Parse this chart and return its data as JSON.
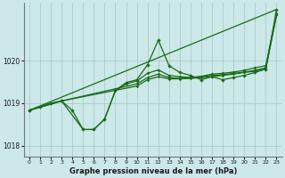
{
  "title": "Graphe pression niveau de la mer (hPa)",
  "bg_color": "#cce8e8",
  "grid_color": "#aacccc",
  "line_color": "#1a6b1a",
  "xlim": [
    -0.5,
    23.5
  ],
  "ylim": [
    1017.75,
    1021.35
  ],
  "yticks": [
    1018,
    1019,
    1020
  ],
  "xticks": [
    0,
    1,
    2,
    3,
    4,
    5,
    6,
    7,
    8,
    9,
    10,
    11,
    12,
    13,
    14,
    15,
    16,
    17,
    18,
    19,
    20,
    21,
    22,
    23
  ],
  "series1_x": [
    0,
    1,
    2,
    3,
    4,
    5,
    6,
    7,
    8,
    9,
    10,
    11,
    12,
    13,
    14,
    15,
    16,
    17,
    18,
    19,
    20,
    21,
    22,
    23
  ],
  "series1_y": [
    1018.83,
    1018.92,
    1019.0,
    1019.05,
    1018.83,
    1018.38,
    1018.38,
    1018.62,
    1019.3,
    1019.48,
    1019.55,
    1019.9,
    1020.48,
    1019.88,
    1019.72,
    1019.65,
    1019.55,
    1019.62,
    1019.55,
    1019.6,
    1019.65,
    1019.72,
    1019.8,
    1021.2
  ],
  "series2_x": [
    0,
    3,
    5,
    6,
    7,
    8,
    9,
    10,
    11,
    12,
    13,
    14,
    15,
    16,
    17,
    18,
    19,
    20,
    21,
    22,
    23
  ],
  "series2_y": [
    1018.83,
    1019.05,
    1018.38,
    1018.38,
    1018.62,
    1019.28,
    1019.45,
    1019.52,
    1019.7,
    1019.78,
    1019.65,
    1019.62,
    1019.6,
    1019.63,
    1019.68,
    1019.7,
    1019.73,
    1019.77,
    1019.83,
    1019.88,
    1021.1
  ],
  "series3_x": [
    0,
    3,
    10,
    11,
    12,
    13,
    14,
    15,
    16,
    17,
    18,
    19,
    20,
    21,
    22,
    23
  ],
  "series3_y": [
    1018.83,
    1019.05,
    1019.45,
    1019.6,
    1019.68,
    1019.6,
    1019.58,
    1019.6,
    1019.62,
    1019.65,
    1019.67,
    1019.7,
    1019.73,
    1019.77,
    1019.83,
    1021.08
  ],
  "series4_x": [
    0,
    3,
    10,
    11,
    12,
    13,
    14,
    15,
    16,
    17,
    18,
    19,
    20,
    21,
    22,
    23
  ],
  "series4_y": [
    1018.83,
    1019.05,
    1019.4,
    1019.55,
    1019.62,
    1019.57,
    1019.57,
    1019.58,
    1019.6,
    1019.62,
    1019.65,
    1019.68,
    1019.72,
    1019.75,
    1019.8,
    1021.07
  ],
  "series5_x": [
    0,
    23
  ],
  "series5_y": [
    1018.83,
    1021.2
  ]
}
